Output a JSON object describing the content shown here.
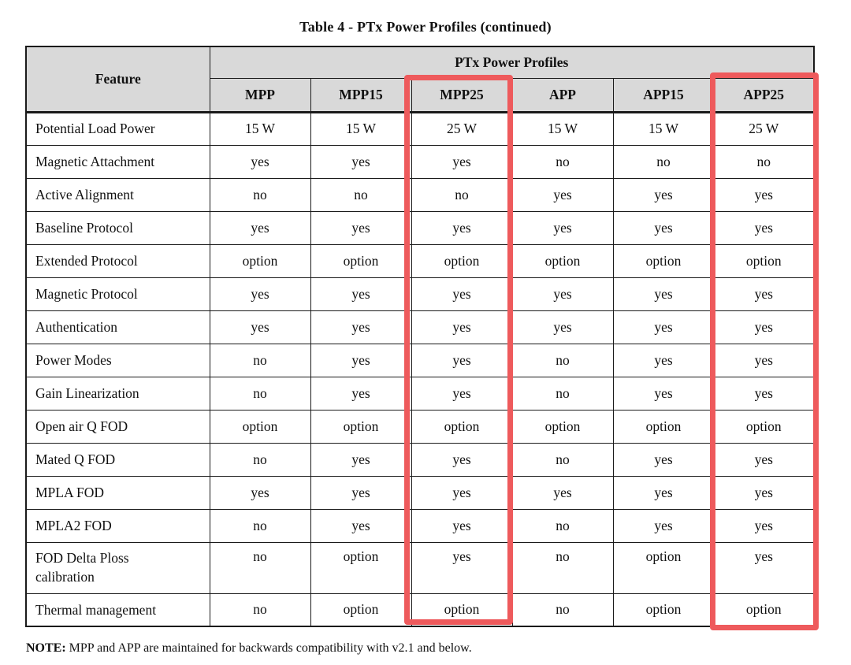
{
  "title": "Table 4 - PTx Power Profiles (continued)",
  "table": {
    "feature_header": "Feature",
    "group_header": "PTx Power Profiles",
    "columns": [
      "MPP",
      "MPP15",
      "MPP25",
      "APP",
      "APP15",
      "APP25"
    ],
    "highlighted_columns": [
      "MPP25",
      "APP25"
    ],
    "rows": [
      {
        "feature": "Potential Load Power",
        "values": [
          "15 W",
          "15 W",
          "25 W",
          "15 W",
          "15 W",
          "25 W"
        ]
      },
      {
        "feature": "Magnetic Attachment",
        "values": [
          "yes",
          "yes",
          "yes",
          "no",
          "no",
          "no"
        ]
      },
      {
        "feature": "Active Alignment",
        "values": [
          "no",
          "no",
          "no",
          "yes",
          "yes",
          "yes"
        ]
      },
      {
        "feature": "Baseline Protocol",
        "values": [
          "yes",
          "yes",
          "yes",
          "yes",
          "yes",
          "yes"
        ]
      },
      {
        "feature": "Extended Protocol",
        "values": [
          "option",
          "option",
          "option",
          "option",
          "option",
          "option"
        ]
      },
      {
        "feature": "Magnetic Protocol",
        "values": [
          "yes",
          "yes",
          "yes",
          "yes",
          "yes",
          "yes"
        ]
      },
      {
        "feature": "Authentication",
        "values": [
          "yes",
          "yes",
          "yes",
          "yes",
          "yes",
          "yes"
        ]
      },
      {
        "feature": "Power Modes",
        "values": [
          "no",
          "yes",
          "yes",
          "no",
          "yes",
          "yes"
        ]
      },
      {
        "feature": "Gain Linearization",
        "values": [
          "no",
          "yes",
          "yes",
          "no",
          "yes",
          "yes"
        ]
      },
      {
        "feature": "Open air Q FOD",
        "values": [
          "option",
          "option",
          "option",
          "option",
          "option",
          "option"
        ]
      },
      {
        "feature": "Mated Q FOD",
        "values": [
          "no",
          "yes",
          "yes",
          "no",
          "yes",
          "yes"
        ]
      },
      {
        "feature": "MPLA FOD",
        "values": [
          "yes",
          "yes",
          "yes",
          "yes",
          "yes",
          "yes"
        ]
      },
      {
        "feature": "MPLA2 FOD",
        "values": [
          "no",
          "yes",
          "yes",
          "no",
          "yes",
          "yes"
        ]
      },
      {
        "feature": "FOD Delta Ploss calibration",
        "values": [
          "no",
          "option",
          "yes",
          "no",
          "option",
          "yes"
        ]
      },
      {
        "feature": "Thermal management",
        "values": [
          "no",
          "option",
          "option",
          "no",
          "option",
          "option"
        ]
      }
    ]
  },
  "note": {
    "label": "NOTE:",
    "text": "MPP and APP are maintained for backwards compatibility with v2.1 and below."
  },
  "colors": {
    "header_bg": "#d9d9d9",
    "highlight_red": "#ee5a5c",
    "border": "#1a1a1a"
  }
}
